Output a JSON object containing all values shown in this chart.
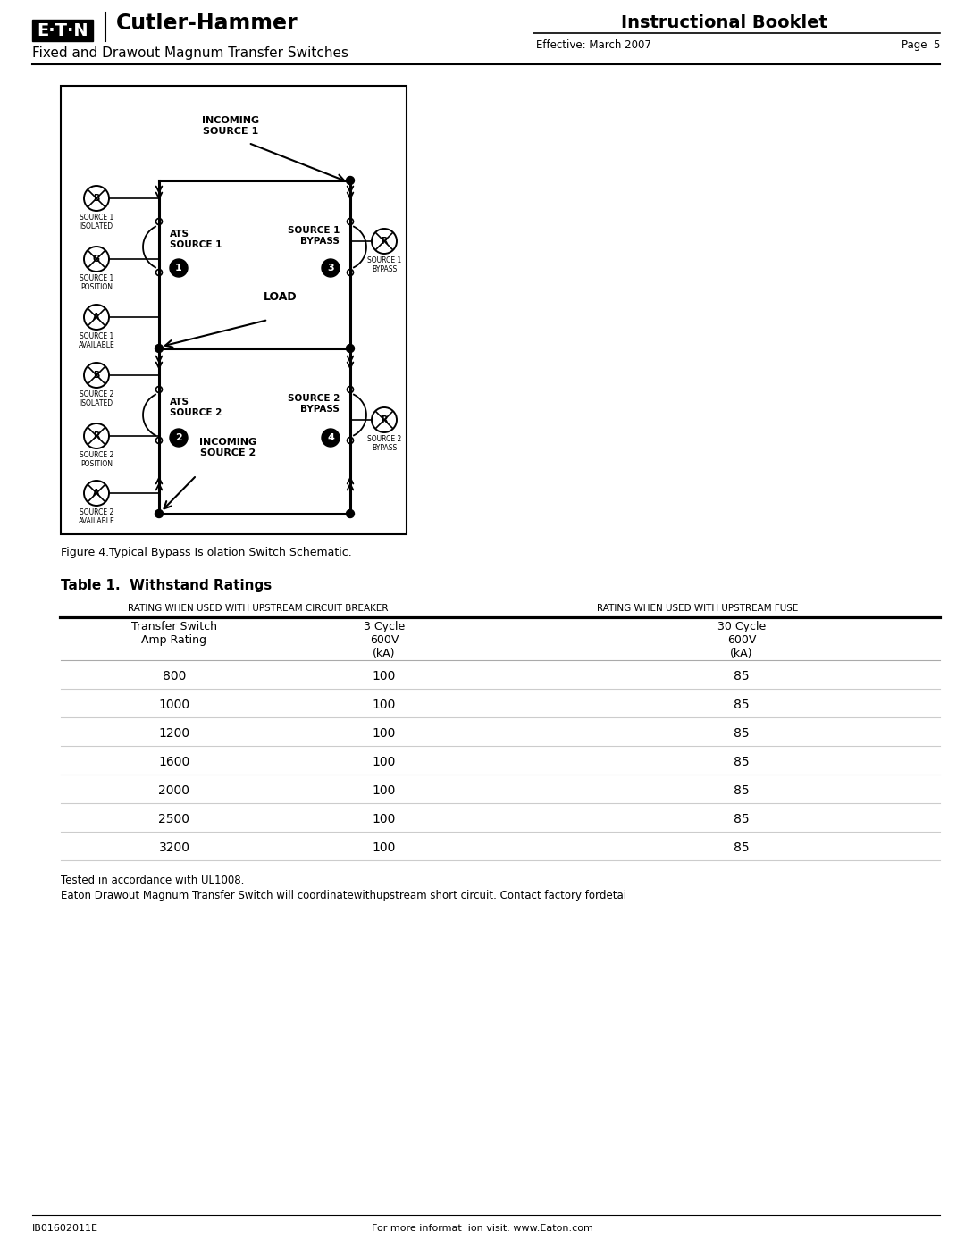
{
  "figure_caption": "Figure 4.Typical Bypass Is olation Switch Schematic.",
  "table_title": "Table 1.  Withstand Ratings",
  "col_header1": "RATING WHEN USED WITH UPSTREAM CIRCUIT BREAKER",
  "col_header2": "RATING WHEN USED WITH UPSTREAM FUSE",
  "table_rows": [
    [
      "800",
      "100",
      "85"
    ],
    [
      "1000",
      "100",
      "85"
    ],
    [
      "1200",
      "100",
      "85"
    ],
    [
      "1600",
      "100",
      "85"
    ],
    [
      "2000",
      "100",
      "85"
    ],
    [
      "2500",
      "100",
      "85"
    ],
    [
      "3200",
      "100",
      "85"
    ]
  ],
  "footer_left": "IB01602011E",
  "footer_center": "For more informat  ion visit: www.Eaton.com",
  "note1": "Tested in accordance with UL1008.",
  "note2": "Eaton Drawout Magnum Transfer Switch will coordinate​with​upstream short ​circuit. ​Contact factory for​detai",
  "bg_color": "#ffffff"
}
